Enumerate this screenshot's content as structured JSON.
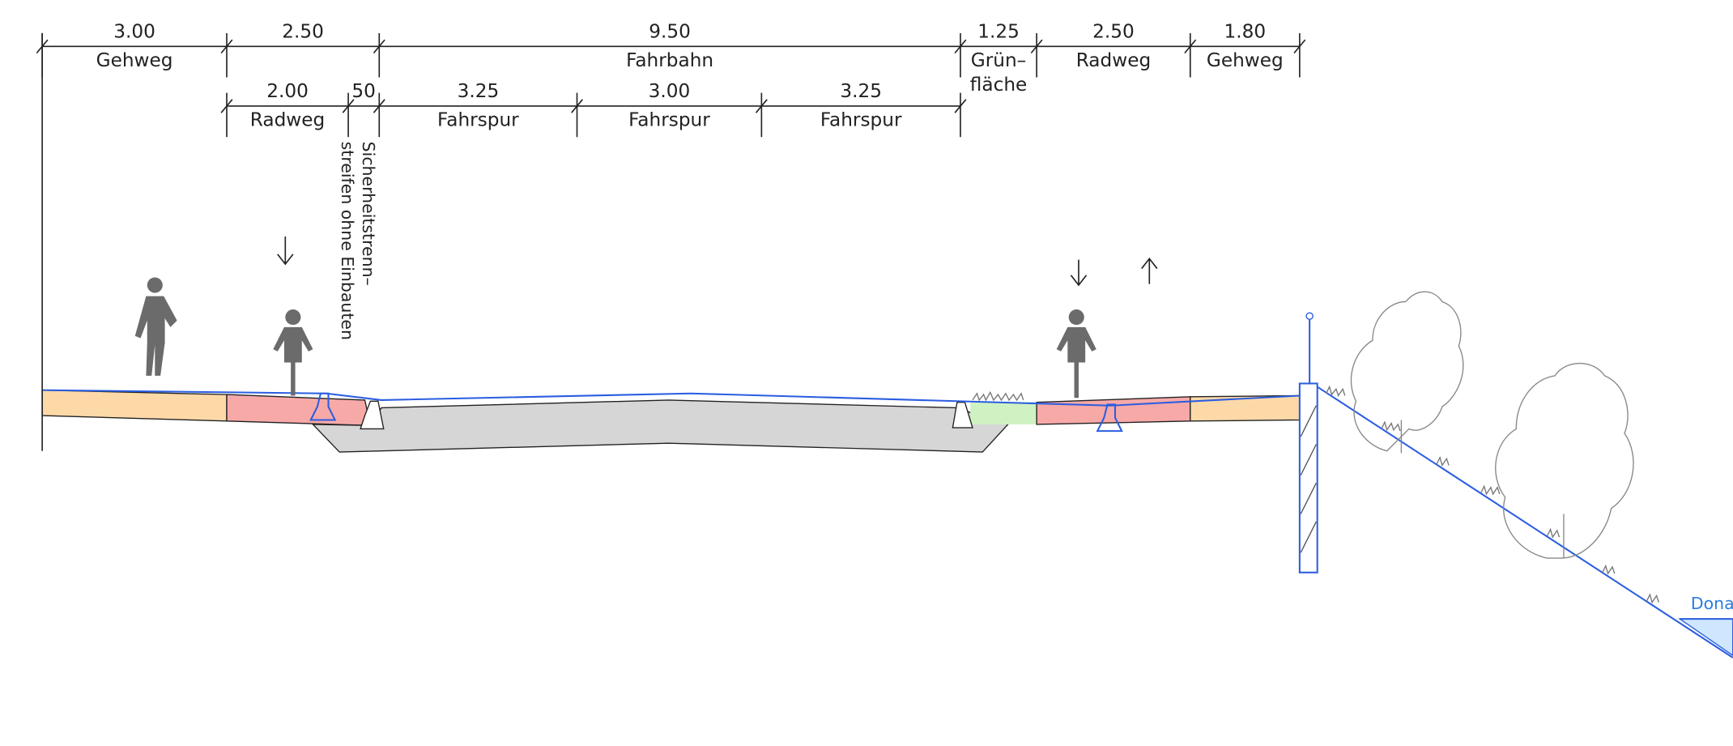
{
  "dimensions": {
    "top": [
      {
        "value": "3.00",
        "label": "Gehweg"
      },
      {
        "value": "2.50"
      },
      {
        "value": "9.50",
        "label": "Fahrbahn"
      },
      {
        "value": "1.25",
        "label": "Grün–",
        "label2": "fläche"
      },
      {
        "value": "2.50",
        "label": "Radweg"
      },
      {
        "value": "1.80",
        "label": "Gehweg"
      }
    ],
    "bottom": [
      {
        "value": "2.00",
        "label": "Radweg"
      },
      {
        "value": "50"
      },
      {
        "value": "3.25",
        "label": "Fahrspur"
      },
      {
        "value": "3.00",
        "label": "Fahrspur"
      },
      {
        "value": "3.25",
        "label": "Fahrspur"
      }
    ]
  },
  "annotation": {
    "line1": "Sicherheitstrenn–",
    "line2": "streifen ohne Einbauten"
  },
  "river": "Donau"
}
